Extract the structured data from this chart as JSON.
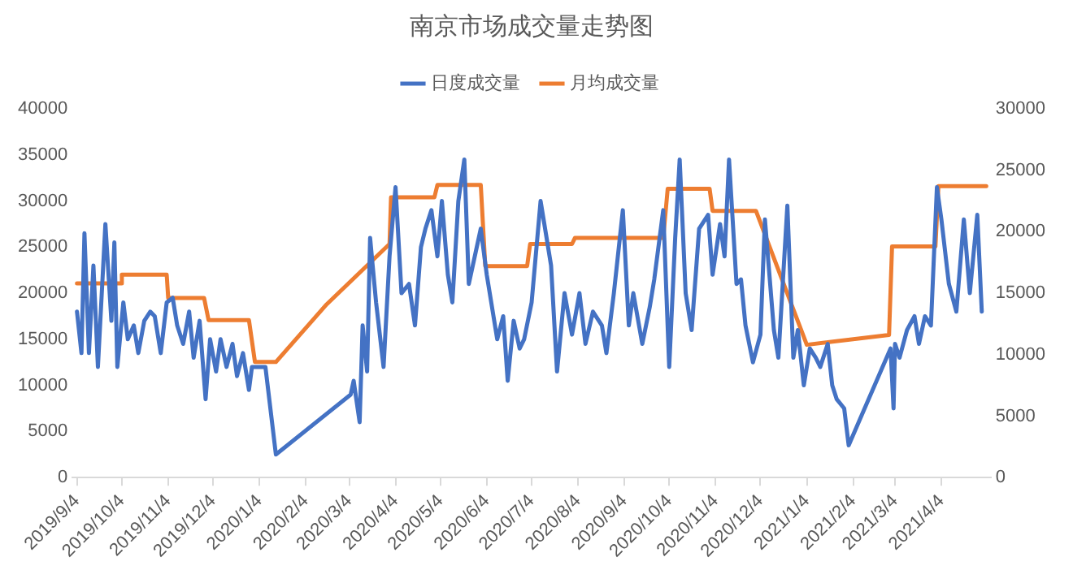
{
  "chart_data": {
    "type": "line",
    "title": "南京市场成交量走势图",
    "legend": "top",
    "grid": false,
    "marker": "none",
    "line_style": "solid",
    "xlim": [
      "2019-09-01",
      "2021-05-07"
    ],
    "xticks": [
      {
        "value": "2019-09-04",
        "label": "2019/9/4"
      },
      {
        "value": "2019-10-04",
        "label": "2019/10/4"
      },
      {
        "value": "2019-11-04",
        "label": "2019/11/4"
      },
      {
        "value": "2019-12-04",
        "label": "2019/12/4"
      },
      {
        "value": "2020-01-04",
        "label": "2020/1/4"
      },
      {
        "value": "2020-02-04",
        "label": "2020/2/4"
      },
      {
        "value": "2020-03-04",
        "label": "2020/3/4"
      },
      {
        "value": "2020-04-04",
        "label": "2020/4/4"
      },
      {
        "value": "2020-05-04",
        "label": "2020/5/4"
      },
      {
        "value": "2020-06-04",
        "label": "2020/6/4"
      },
      {
        "value": "2020-07-04",
        "label": "2020/7/4"
      },
      {
        "value": "2020-08-04",
        "label": "2020/8/4"
      },
      {
        "value": "2020-09-04",
        "label": "2020/9/4"
      },
      {
        "value": "2020-10-04",
        "label": "2020/10/4"
      },
      {
        "value": "2020-11-04",
        "label": "2020/11/4"
      },
      {
        "value": "2020-12-04",
        "label": "2020/12/4"
      },
      {
        "value": "2021-01-04",
        "label": "2021/1/4"
      },
      {
        "value": "2021-02-04",
        "label": "2021/2/4"
      },
      {
        "value": "2021-03-04",
        "label": "2021/3/4"
      },
      {
        "value": "2021-04-04",
        "label": "2021/4/4"
      }
    ],
    "ylim": [
      0,
      40000
    ],
    "yticks": [
      0,
      5000,
      10000,
      15000,
      20000,
      25000,
      30000,
      35000,
      40000
    ],
    "y2lim": [
      0,
      30000
    ],
    "y2ticks": [
      0,
      5000,
      10000,
      15000,
      20000,
      25000,
      30000
    ],
    "series": [
      {
        "name": "日度成交量",
        "color": "#4472c4",
        "axis": "y",
        "x": [
          "2019-09-04",
          "2019-09-07",
          "2019-09-09",
          "2019-09-12",
          "2019-09-15",
          "2019-09-18",
          "2019-09-23",
          "2019-09-27",
          "2019-09-29",
          "2019-10-01",
          "2019-10-05",
          "2019-10-08",
          "2019-10-12",
          "2019-10-15",
          "2019-10-19",
          "2019-10-23",
          "2019-10-26",
          "2019-10-30",
          "2019-11-03",
          "2019-11-07",
          "2019-11-10",
          "2019-11-14",
          "2019-11-18",
          "2019-11-21",
          "2019-11-25",
          "2019-11-29",
          "2019-12-02",
          "2019-12-06",
          "2019-12-09",
          "2019-12-13",
          "2019-12-17",
          "2019-12-20",
          "2019-12-24",
          "2019-12-28",
          "2019-12-30",
          "2020-01-02",
          "2020-01-08",
          "2020-01-15",
          "2020-03-05",
          "2020-03-07",
          "2020-03-11",
          "2020-03-13",
          "2020-03-16",
          "2020-03-18",
          "2020-03-22",
          "2020-03-27",
          "2020-03-31",
          "2020-04-04",
          "2020-04-08",
          "2020-04-13",
          "2020-04-17",
          "2020-04-21",
          "2020-04-24",
          "2020-04-28",
          "2020-05-02",
          "2020-05-05",
          "2020-05-09",
          "2020-05-12",
          "2020-05-16",
          "2020-05-20",
          "2020-05-23",
          "2020-05-27",
          "2020-05-31",
          "2020-06-04",
          "2020-06-07",
          "2020-06-11",
          "2020-06-15",
          "2020-06-18",
          "2020-06-22",
          "2020-06-26",
          "2020-06-29",
          "2020-07-04",
          "2020-07-10",
          "2020-07-17",
          "2020-07-21",
          "2020-07-26",
          "2020-07-31",
          "2020-08-05",
          "2020-08-09",
          "2020-08-14",
          "2020-08-20",
          "2020-08-23",
          "2020-08-28",
          "2020-09-03",
          "2020-09-07",
          "2020-09-10",
          "2020-09-16",
          "2020-09-21",
          "2020-09-24",
          "2020-09-30",
          "2020-10-04",
          "2020-10-08",
          "2020-10-11",
          "2020-10-15",
          "2020-10-19",
          "2020-10-24",
          "2020-10-30",
          "2020-11-02",
          "2020-11-07",
          "2020-11-10",
          "2020-11-13",
          "2020-11-18",
          "2020-11-21",
          "2020-11-24",
          "2020-11-29",
          "2020-12-04",
          "2020-12-07",
          "2020-12-13",
          "2020-12-16",
          "2020-12-22",
          "2020-12-26",
          "2020-12-29",
          "2021-01-02",
          "2021-01-06",
          "2021-01-10",
          "2021-01-13",
          "2021-01-18",
          "2021-01-21",
          "2021-01-24",
          "2021-01-29",
          "2021-02-01",
          "2021-03-01",
          "2021-03-03",
          "2021-03-04",
          "2021-03-07",
          "2021-03-12",
          "2021-03-17",
          "2021-03-20",
          "2021-03-24",
          "2021-03-28",
          "2021-04-01",
          "2021-04-04",
          "2021-04-09",
          "2021-04-14",
          "2021-04-19",
          "2021-04-23",
          "2021-04-28",
          "2021-05-01"
        ],
        "values": [
          18000,
          13500,
          26500,
          13500,
          23000,
          12000,
          27500,
          17000,
          25500,
          12000,
          19000,
          15000,
          16500,
          13500,
          17000,
          18000,
          17500,
          13500,
          19000,
          19500,
          16500,
          14500,
          18000,
          13000,
          17000,
          8500,
          15000,
          11500,
          15000,
          12000,
          14500,
          11000,
          13500,
          9500,
          12000,
          12000,
          12000,
          2500,
          9000,
          10500,
          6000,
          16500,
          11500,
          26000,
          19000,
          12000,
          24000,
          31500,
          20000,
          21000,
          16500,
          25000,
          27000,
          29000,
          24000,
          30000,
          22000,
          19000,
          30000,
          34500,
          21000,
          24000,
          27000,
          22000,
          19000,
          15000,
          17500,
          10500,
          17000,
          14000,
          15000,
          19000,
          30000,
          23000,
          11500,
          20000,
          15500,
          20000,
          14500,
          18000,
          16500,
          13500,
          20000,
          29000,
          16500,
          20000,
          14500,
          18500,
          21500,
          29000,
          12000,
          26000,
          34500,
          20000,
          16000,
          27000,
          28500,
          22000,
          27500,
          24000,
          34500,
          21000,
          21500,
          16500,
          12500,
          15500,
          28000,
          16000,
          13000,
          29500,
          13000,
          16000,
          10000,
          14000,
          13000,
          12000,
          14500,
          10000,
          8500,
          7500,
          3500,
          14000,
          7500,
          14500,
          13000,
          16000,
          17500,
          14500,
          17500,
          16500,
          31500,
          28000,
          21000,
          18000,
          28000,
          20000,
          28500,
          18000
        ]
      },
      {
        "name": "月均成交量",
        "color": "#ed7d31",
        "axis": "y2",
        "x": [
          "2019-09-04",
          "2019-10-03",
          "2019-10-04",
          "2019-11-03",
          "2019-11-04",
          "2019-11-28",
          "2019-12-01",
          "2019-12-28",
          "2020-01-01",
          "2020-01-15",
          "2020-02-18",
          "2020-03-31",
          "2020-04-01",
          "2020-04-30",
          "2020-05-02",
          "2020-05-31",
          "2020-06-03",
          "2020-07-01",
          "2020-07-03",
          "2020-07-31",
          "2020-08-02",
          "2020-09-30",
          "2020-10-03",
          "2020-10-31",
          "2020-11-02",
          "2020-12-01",
          "2021-01-04",
          "2021-02-28",
          "2021-03-02",
          "2021-03-31",
          "2021-04-02",
          "2021-05-04"
        ],
        "values": [
          15800,
          15800,
          16500,
          16500,
          14600,
          14600,
          12800,
          12800,
          9400,
          9400,
          14100,
          19000,
          22800,
          22800,
          23800,
          23800,
          17200,
          17200,
          19000,
          19000,
          19500,
          19500,
          23500,
          23500,
          21700,
          21700,
          10800,
          11600,
          18800,
          18800,
          23700,
          23700
        ]
      }
    ]
  }
}
